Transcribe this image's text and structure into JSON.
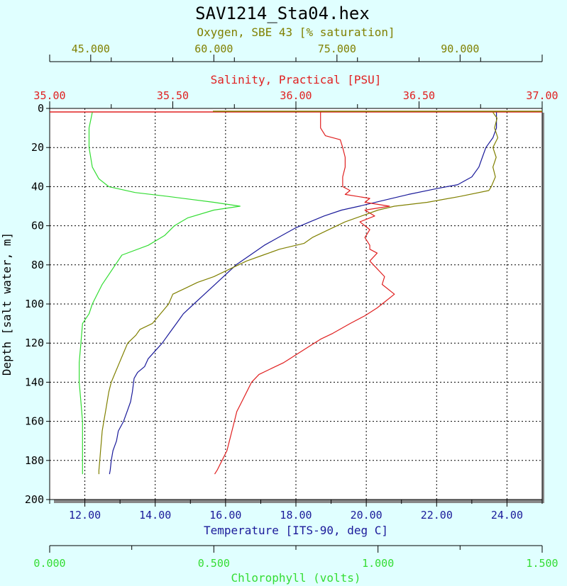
{
  "colors": {
    "background": "#e0ffff",
    "plot_background": "#ffffff",
    "oxygen": "#808000",
    "salinity": "#e02020",
    "temperature": "#1a1a9a",
    "chlorophyll": "#33dd33",
    "text": "#000000"
  },
  "chart_data": {
    "type": "line",
    "title": "SAV1214_Sta04.hex",
    "grid": true,
    "y_axis": {
      "label": "Depth [salt water, m]",
      "range": [
        0,
        200
      ],
      "inverted": true,
      "ticks": [
        "0",
        "20",
        "40",
        "60",
        "80",
        "100",
        "120",
        "140",
        "160",
        "180",
        "200"
      ]
    },
    "x_axes": [
      {
        "id": "oxygen",
        "label": "Oxygen, SBE 43 [% saturation]",
        "position": "top-outer",
        "range": [
          40,
          100
        ],
        "ticks": [
          {
            "value": 45,
            "label": "45.000"
          },
          {
            "value": 60,
            "label": "60.000"
          },
          {
            "value": 75,
            "label": "75.000"
          },
          {
            "value": 90,
            "label": "90.000"
          }
        ]
      },
      {
        "id": "salinity",
        "label": "Salinity, Practical [PSU]",
        "position": "top-inner",
        "range": [
          35.0,
          37.0
        ],
        "ticks": [
          {
            "value": 35.0,
            "label": "35.00"
          },
          {
            "value": 35.5,
            "label": "35.50"
          },
          {
            "value": 36.0,
            "label": "36.00"
          },
          {
            "value": 36.5,
            "label": "36.50"
          },
          {
            "value": 37.0,
            "label": "37.00"
          }
        ]
      },
      {
        "id": "temperature",
        "label": "Temperature [ITS-90, deg C]",
        "position": "bottom-inner",
        "range": [
          11,
          25
        ],
        "ticks": [
          {
            "value": 12,
            "label": "12.00"
          },
          {
            "value": 14,
            "label": "14.00"
          },
          {
            "value": 16,
            "label": "16.00"
          },
          {
            "value": 18,
            "label": "18.00"
          },
          {
            "value": 20,
            "label": "20.00"
          },
          {
            "value": 22,
            "label": "22.00"
          },
          {
            "value": 24,
            "label": "24.00"
          }
        ]
      },
      {
        "id": "chlorophyll",
        "label": "Chlorophyll (volts)",
        "position": "bottom-outer",
        "range": [
          0.0,
          1.5
        ],
        "ticks": [
          {
            "value": 0.0,
            "label": "0.000"
          },
          {
            "value": 0.5,
            "label": "0.500"
          },
          {
            "value": 1.0,
            "label": "1.000"
          },
          {
            "value": 1.5,
            "label": "1.500"
          }
        ]
      }
    ],
    "series": [
      {
        "axis": "temperature",
        "color": "#1a1a9a",
        "points": [
          [
            23.7,
            2
          ],
          [
            23.7,
            10
          ],
          [
            23.6,
            15
          ],
          [
            23.4,
            20
          ],
          [
            23.3,
            25
          ],
          [
            23.2,
            30
          ],
          [
            23.0,
            35
          ],
          [
            22.6,
            39
          ],
          [
            22.0,
            41
          ],
          [
            21.2,
            44
          ],
          [
            20.5,
            47
          ],
          [
            19.8,
            50
          ],
          [
            19.3,
            52
          ],
          [
            18.8,
            55
          ],
          [
            18.4,
            58
          ],
          [
            18.0,
            61
          ],
          [
            17.7,
            64
          ],
          [
            17.4,
            67
          ],
          [
            17.1,
            70
          ],
          [
            16.7,
            75
          ],
          [
            16.3,
            80
          ],
          [
            16.0,
            85
          ],
          [
            15.7,
            90
          ],
          [
            15.4,
            95
          ],
          [
            15.1,
            100
          ],
          [
            14.8,
            105
          ],
          [
            14.6,
            110
          ],
          [
            14.4,
            115
          ],
          [
            14.2,
            120
          ],
          [
            14.0,
            124
          ],
          [
            13.8,
            128
          ],
          [
            13.7,
            132
          ],
          [
            13.5,
            135
          ],
          [
            13.4,
            138
          ],
          [
            13.35,
            145
          ],
          [
            13.3,
            150
          ],
          [
            13.2,
            155
          ],
          [
            13.1,
            160
          ],
          [
            12.95,
            165
          ],
          [
            12.9,
            170
          ],
          [
            12.8,
            175
          ],
          [
            12.75,
            180
          ],
          [
            12.72,
            185
          ],
          [
            12.7,
            187
          ]
        ]
      },
      {
        "axis": "salinity",
        "color": "#e02020",
        "points": [
          [
            36.1,
            2
          ],
          [
            36.1,
            10
          ],
          [
            36.12,
            14
          ],
          [
            36.18,
            16
          ],
          [
            36.19,
            20
          ],
          [
            36.2,
            25
          ],
          [
            36.2,
            30
          ],
          [
            36.19,
            35
          ],
          [
            36.19,
            40
          ],
          [
            36.22,
            42
          ],
          [
            36.2,
            44
          ],
          [
            36.3,
            46
          ],
          [
            36.28,
            48
          ],
          [
            36.38,
            50
          ],
          [
            36.28,
            52
          ],
          [
            36.32,
            55
          ],
          [
            36.26,
            58
          ],
          [
            36.3,
            62
          ],
          [
            36.28,
            66
          ],
          [
            36.3,
            70
          ],
          [
            36.3,
            72
          ],
          [
            36.33,
            74
          ],
          [
            36.3,
            78
          ],
          [
            36.33,
            82
          ],
          [
            36.36,
            86
          ],
          [
            36.35,
            90
          ],
          [
            36.4,
            95
          ],
          [
            36.37,
            98
          ],
          [
            36.33,
            102
          ],
          [
            36.28,
            106
          ],
          [
            36.22,
            110
          ],
          [
            36.15,
            115
          ],
          [
            36.1,
            118
          ],
          [
            36.05,
            122
          ],
          [
            36.0,
            126
          ],
          [
            35.95,
            130
          ],
          [
            35.9,
            133
          ],
          [
            35.85,
            136
          ],
          [
            35.82,
            140
          ],
          [
            35.8,
            145
          ],
          [
            35.78,
            150
          ],
          [
            35.76,
            155
          ],
          [
            35.75,
            160
          ],
          [
            35.74,
            165
          ],
          [
            35.73,
            170
          ],
          [
            35.72,
            175
          ],
          [
            35.7,
            180
          ],
          [
            35.68,
            185
          ],
          [
            35.67,
            187
          ]
        ]
      },
      {
        "axis": "oxygen",
        "color": "#808000",
        "points": [
          [
            94,
            2
          ],
          [
            94.5,
            5
          ],
          [
            94.2,
            10
          ],
          [
            94.6,
            15
          ],
          [
            94,
            20
          ],
          [
            94.4,
            25
          ],
          [
            94,
            30
          ],
          [
            94.3,
            35
          ],
          [
            93.8,
            40
          ],
          [
            93.5,
            42
          ],
          [
            90,
            45
          ],
          [
            86,
            48
          ],
          [
            82,
            50
          ],
          [
            80,
            52
          ],
          [
            78,
            55
          ],
          [
            76,
            58
          ],
          [
            74,
            62
          ],
          [
            72,
            66
          ],
          [
            71,
            69
          ],
          [
            68,
            72
          ],
          [
            66,
            75
          ],
          [
            64,
            78
          ],
          [
            62,
            82
          ],
          [
            60,
            86
          ],
          [
            58,
            89
          ],
          [
            56.5,
            92
          ],
          [
            55,
            95
          ],
          [
            54.5,
            100
          ],
          [
            53.5,
            105
          ],
          [
            52.5,
            110
          ],
          [
            51,
            113
          ],
          [
            50.5,
            116
          ],
          [
            49.5,
            120
          ],
          [
            49,
            125
          ],
          [
            48.5,
            130
          ],
          [
            48,
            135
          ],
          [
            47.5,
            140
          ],
          [
            47.2,
            145
          ],
          [
            47,
            150
          ],
          [
            46.8,
            155
          ],
          [
            46.6,
            160
          ],
          [
            46.4,
            165
          ],
          [
            46.3,
            170
          ],
          [
            46.2,
            175
          ],
          [
            46.1,
            180
          ],
          [
            46,
            185
          ],
          [
            46,
            187
          ]
        ]
      },
      {
        "axis": "chlorophyll",
        "color": "#33dd33",
        "points": [
          [
            0.13,
            2
          ],
          [
            0.12,
            10
          ],
          [
            0.12,
            20
          ],
          [
            0.13,
            30
          ],
          [
            0.15,
            36
          ],
          [
            0.18,
            40
          ],
          [
            0.26,
            43
          ],
          [
            0.36,
            45
          ],
          [
            0.5,
            48
          ],
          [
            0.58,
            50
          ],
          [
            0.5,
            52
          ],
          [
            0.42,
            56
          ],
          [
            0.38,
            60
          ],
          [
            0.35,
            65
          ],
          [
            0.3,
            70
          ],
          [
            0.22,
            75
          ],
          [
            0.2,
            80
          ],
          [
            0.18,
            85
          ],
          [
            0.16,
            90
          ],
          [
            0.13,
            100
          ],
          [
            0.12,
            105
          ],
          [
            0.1,
            110
          ],
          [
            0.095,
            120
          ],
          [
            0.09,
            130
          ],
          [
            0.09,
            140
          ],
          [
            0.095,
            150
          ],
          [
            0.1,
            160
          ],
          [
            0.1,
            170
          ],
          [
            0.1,
            180
          ],
          [
            0.1,
            187
          ]
        ]
      }
    ]
  }
}
